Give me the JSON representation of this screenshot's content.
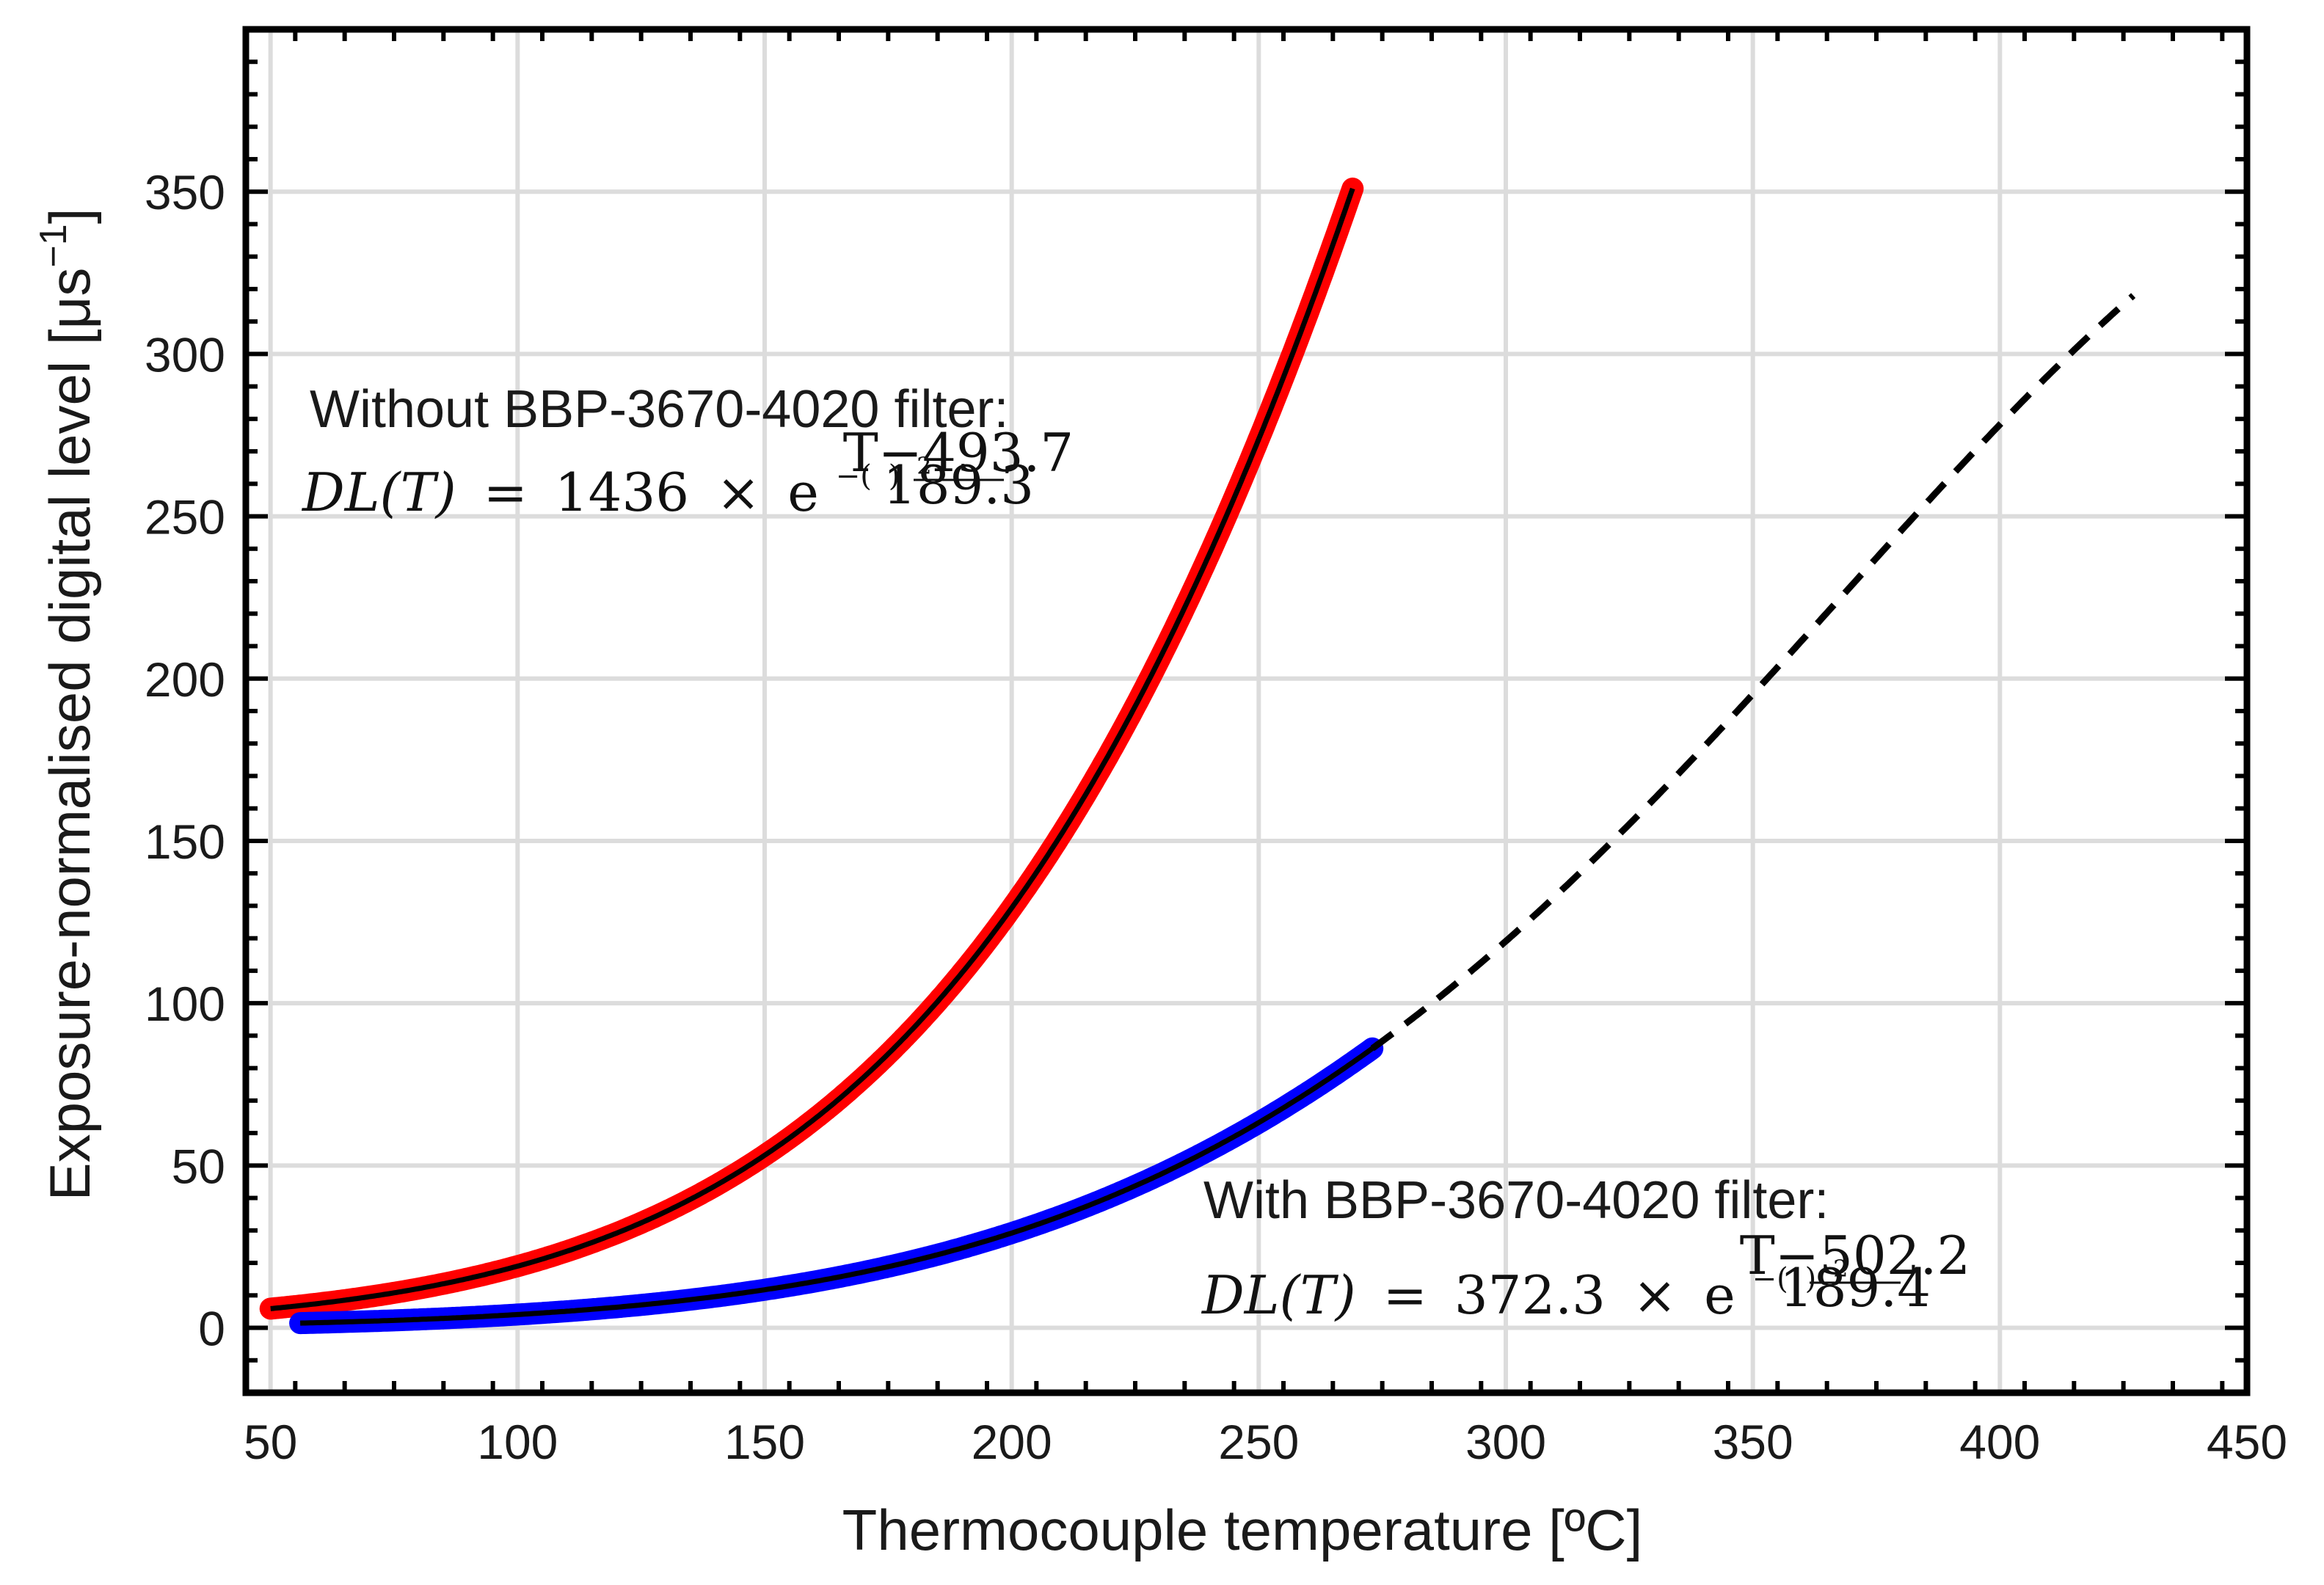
{
  "chart_data": {
    "type": "line",
    "xlabel": "Thermocouple temperature [ºC]",
    "ylabel": "Exposure-normalised digital level [μs",
    "ylabel_sup": "−1",
    "ylabel_end": "]",
    "xlim": [
      45,
      450
    ],
    "ylim": [
      -20,
      400
    ],
    "xticks": [
      50,
      100,
      150,
      200,
      250,
      300,
      350,
      400,
      450
    ],
    "yticks": [
      0,
      50,
      100,
      150,
      200,
      250,
      300,
      350
    ],
    "grid": true,
    "series": [
      {
        "name": "Without BBP-3670-4020 filter (data)",
        "kind": "thick-scatter",
        "color": "#ff0000",
        "x_range": [
          50,
          269
        ],
        "fit": {
          "A": 1436,
          "mu": 493.7,
          "sigma": 189.3
        }
      },
      {
        "name": "Without BBP-3670-4020 filter (fit)",
        "kind": "line",
        "color": "#000000",
        "x_range": [
          50,
          269
        ],
        "fit": {
          "A": 1436,
          "mu": 493.7,
          "sigma": 189.3
        }
      },
      {
        "name": "With BBP-3670-4020 filter (data)",
        "kind": "thick-scatter",
        "color": "#0000ff",
        "x_range": [
          56,
          273
        ],
        "fit": {
          "A": 372.3,
          "mu": 502.2,
          "sigma": 189.4
        }
      },
      {
        "name": "With BBP-3670-4020 filter (fit)",
        "kind": "line",
        "color": "#000000",
        "x_range": [
          56,
          273
        ],
        "fit": {
          "A": 372.3,
          "mu": 502.2,
          "sigma": 189.4
        }
      },
      {
        "name": "With BBP-3670-4020 filter (extrapolation)",
        "kind": "dashed",
        "color": "#000000",
        "x_range": [
          273,
          427
        ],
        "fit": {
          "A": 372.3,
          "mu": 502.2,
          "sigma": 189.4
        }
      }
    ],
    "annotations": {
      "without": {
        "label": "Without BBP-3670-4020 filter:",
        "eq_lhs": "DL(T)",
        "eq_eq": "=",
        "eq_coef": "1436",
        "eq_times": "×",
        "eq_e": "e",
        "eq_minus": "−(",
        "eq_num": "T−493.7",
        "eq_den": "189.3",
        "eq_close": ")",
        "eq_pow": "2"
      },
      "with": {
        "label": "With BBP-3670-4020 filter:",
        "eq_lhs": "DL(T)",
        "eq_eq": "=",
        "eq_coef": "372.3",
        "eq_times": "×",
        "eq_e": "e",
        "eq_minus": "−(",
        "eq_num": "T−502.2",
        "eq_den": "189.4",
        "eq_close": ")",
        "eq_pow": "2"
      }
    }
  }
}
